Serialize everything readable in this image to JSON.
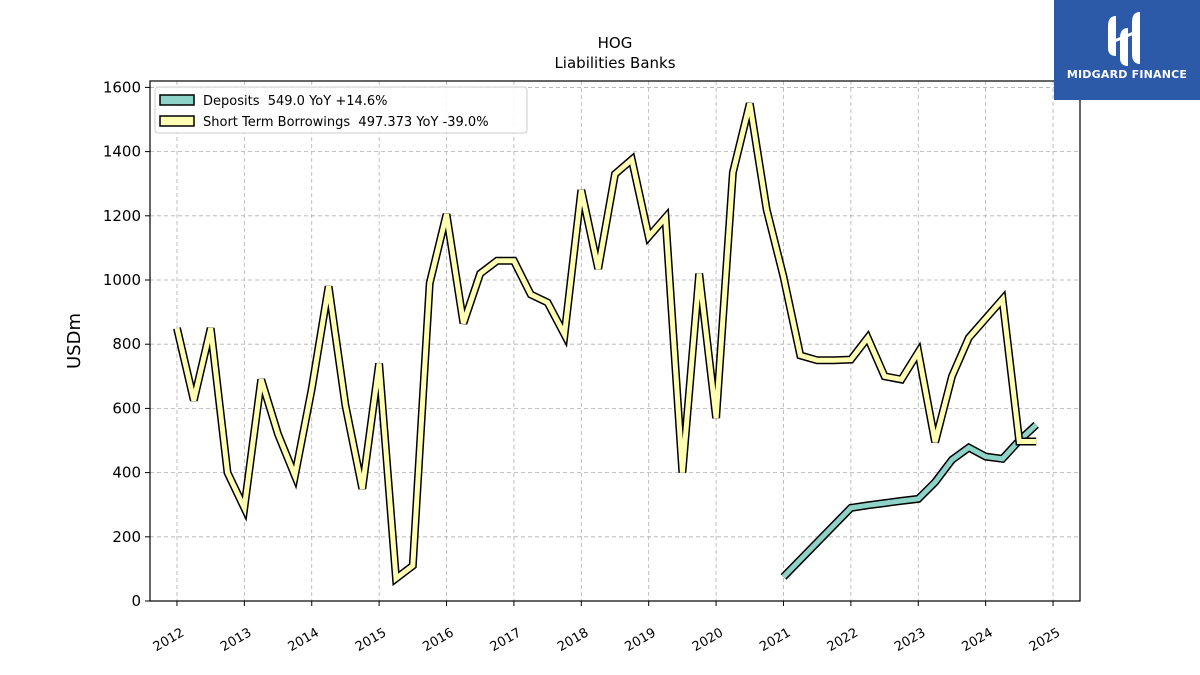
{
  "chart_data": {
    "type": "line",
    "title": "HOG",
    "subtitle": "Liabilities Banks",
    "ylabel": "USDm",
    "xlabel": "",
    "ylim": [
      0,
      1620
    ],
    "xlim": [
      2011.6,
      2025.4
    ],
    "yticks": [
      0,
      200,
      400,
      600,
      800,
      1000,
      1200,
      1400,
      1600
    ],
    "xticks": [
      2012,
      2013,
      2014,
      2015,
      2016,
      2017,
      2018,
      2019,
      2020,
      2021,
      2022,
      2023,
      2024,
      2025
    ],
    "grid": true,
    "legend_position": "top-left",
    "series": [
      {
        "name": "Deposits  549.0 YoY +14.6%",
        "color": "#8dd3c7",
        "x": [
          2021.0,
          2022.0,
          2022.25,
          2022.5,
          2022.75,
          2023.0,
          2023.25,
          2023.5,
          2023.75,
          2024.0,
          2024.25,
          2024.5,
          2024.75
        ],
        "y": [
          75,
          290,
          298,
          305,
          312,
          318,
          370,
          440,
          478,
          450,
          443,
          500,
          549
        ]
      },
      {
        "name": "Short Term Borrowings  497.373 YoY -39.0%",
        "color": "#ffffb3",
        "x": [
          2012.0,
          2012.25,
          2012.5,
          2012.75,
          2013.0,
          2013.25,
          2013.5,
          2013.75,
          2014.0,
          2014.25,
          2014.5,
          2014.75,
          2015.0,
          2015.25,
          2015.5,
          2015.75,
          2016.0,
          2016.25,
          2016.5,
          2016.75,
          2017.0,
          2017.25,
          2017.5,
          2017.75,
          2018.0,
          2018.25,
          2018.5,
          2018.75,
          2019.0,
          2019.25,
          2019.5,
          2019.75,
          2020.0,
          2020.25,
          2020.5,
          2020.75,
          2021.0,
          2021.25,
          2021.5,
          2021.75,
          2022.0,
          2022.25,
          2022.5,
          2022.75,
          2023.0,
          2023.25,
          2023.5,
          2023.75,
          2024.0,
          2024.25,
          2024.5,
          2024.75
        ],
        "y": [
          850,
          625,
          850,
          400,
          290,
          690,
          520,
          390,
          660,
          980,
          610,
          350,
          740,
          70,
          110,
          990,
          1205,
          865,
          1020,
          1060,
          1060,
          955,
          930,
          830,
          1280,
          1035,
          1330,
          1375,
          1135,
          1195,
          400,
          1020,
          570,
          1335,
          1550,
          1220,
          1010,
          765,
          750,
          750,
          752,
          820,
          700,
          690,
          775,
          495,
          700,
          820,
          880,
          940,
          497,
          497
        ]
      }
    ]
  },
  "logo": {
    "text": "MIDGARD FINANCE"
  }
}
